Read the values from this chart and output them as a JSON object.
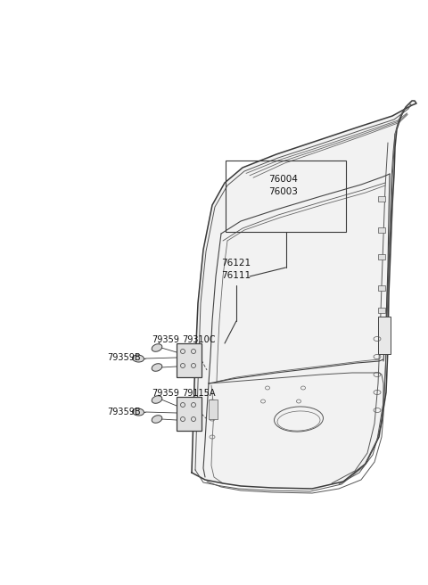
{
  "bg_color": "#ffffff",
  "line_color": "#3a3a3a",
  "font_size": 7.0,
  "labels_76004": "76004",
  "labels_76003": "76003",
  "labels_76121": "76121",
  "labels_76111": "76111",
  "labels_79359_top": "79359",
  "labels_79310C": "79310C",
  "labels_79359B_top": "79359B",
  "labels_79359_bot": "79359",
  "labels_79115A": "79115A",
  "labels_79359B_bot": "79359B"
}
